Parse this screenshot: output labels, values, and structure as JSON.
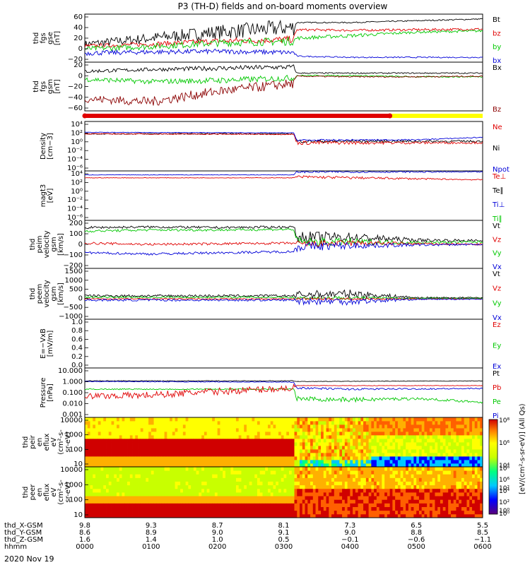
{
  "title": "P3 (TH-D) fields and on-board moments overview",
  "date": "2020 Nov 19",
  "colors": {
    "black": "#000000",
    "red": "#e00000",
    "green": "#00c800",
    "blue": "#0000d8",
    "darkred": "#8b0000",
    "yellow": "#ffff00",
    "frame": "#000000"
  },
  "chart_data": [
    {
      "type": "line",
      "name": "fgs-gse",
      "ylabel": [
        "thd",
        "fgs",
        "gse",
        "[nT]"
      ],
      "yticks": [
        "60",
        "40",
        "20",
        "0",
        "−20"
      ],
      "legend": [
        {
          "label": "Bt",
          "color": "black"
        },
        {
          "label": "bz",
          "color": "red"
        },
        {
          "label": "by",
          "color": "green"
        },
        {
          "label": "bx",
          "color": "blue"
        }
      ],
      "ylim": [
        -20,
        60
      ],
      "series": [
        {
          "name": "Bt",
          "color": "black",
          "x": [
            0,
            1,
            2,
            3.15,
            3.2,
            4,
            5,
            6
          ],
          "y": [
            10,
            20,
            30,
            38,
            46,
            46,
            49,
            52
          ],
          "noise": [
            6,
            9,
            12,
            14,
            1,
            1,
            1,
            1
          ]
        },
        {
          "name": "bz",
          "color": "red",
          "x": [
            0,
            1,
            2,
            3.15,
            3.2,
            4,
            5,
            6
          ],
          "y": [
            7,
            10,
            15,
            18,
            34,
            33,
            34,
            35
          ],
          "noise": [
            3,
            4,
            5,
            6,
            2,
            2,
            2,
            2
          ]
        },
        {
          "name": "by",
          "color": "green",
          "x": [
            0,
            1,
            2,
            3.15,
            3.2,
            4,
            5,
            6
          ],
          "y": [
            2,
            6,
            12,
            15,
            20,
            24,
            30,
            32
          ],
          "noise": [
            4,
            5,
            6,
            7,
            3,
            3,
            2,
            2
          ]
        },
        {
          "name": "bx",
          "color": "blue",
          "x": [
            0,
            1,
            2,
            3.15,
            3.2,
            4,
            5,
            6
          ],
          "y": [
            -5,
            -3,
            -2,
            -4,
            -10,
            -12,
            -12,
            -12
          ],
          "noise": [
            4,
            4,
            4,
            4,
            1,
            1,
            1,
            1
          ]
        }
      ]
    },
    {
      "type": "line",
      "name": "fgs-gsm",
      "ylabel": [
        "thd",
        "fgs",
        "gsm",
        "[nT]"
      ],
      "yticks": [
        "20",
        "0",
        "−20",
        "−40",
        "−60"
      ],
      "legend": [
        {
          "label": "Bx",
          "color": "black"
        },
        {
          "label": "Bz",
          "color": "darkred"
        }
      ],
      "ylim": [
        -60,
        20
      ],
      "series": [
        {
          "name": "Bx",
          "color": "black",
          "x": [
            0,
            1,
            2,
            3.15,
            3.2,
            4,
            5,
            6
          ],
          "y": [
            5,
            8,
            10,
            12,
            2,
            2,
            2,
            2
          ],
          "noise": [
            3,
            3,
            4,
            4,
            1,
            1,
            1,
            1
          ]
        },
        {
          "name": "By",
          "color": "green",
          "x": [
            0,
            1,
            2,
            3.15,
            3.2,
            4,
            5,
            6
          ],
          "y": [
            -8,
            -12,
            -10,
            -6,
            -2,
            -2,
            -4,
            -4
          ],
          "noise": [
            4,
            4,
            5,
            5,
            1,
            1,
            1,
            1
          ]
        },
        {
          "name": "Bz",
          "color": "darkred",
          "x": [
            0,
            1,
            2,
            3.15,
            3.2,
            4,
            5,
            6
          ],
          "y": [
            -40,
            -45,
            -28,
            -15,
            -3,
            -4,
            -4,
            -3
          ],
          "noise": [
            6,
            8,
            8,
            8,
            1,
            1,
            1,
            1
          ]
        }
      ]
    },
    {
      "type": "bar-strip",
      "name": "mode-bar",
      "segments": [
        {
          "from": 0,
          "to": 4.6,
          "color": "red"
        },
        {
          "from": 4.6,
          "to": 6,
          "color": "yellow"
        }
      ]
    },
    {
      "type": "line",
      "name": "density",
      "log": true,
      "ylabel": [
        "Density",
        "[cm−3]"
      ],
      "yticks": [
        "10⁴",
        "10²",
        "10⁰",
        "10⁻²",
        "10⁻⁴",
        "10⁻⁶"
      ],
      "legend": [
        {
          "label": "Ne",
          "color": "red"
        },
        {
          "label": "Ni",
          "color": "black"
        },
        {
          "label": "Npot",
          "color": "blue"
        }
      ],
      "ylim": [
        -6,
        4
      ],
      "series": [
        {
          "name": "Ni",
          "color": "black",
          "x": [
            0,
            3.15,
            3.2,
            6
          ],
          "y": [
            1.5,
            1.5,
            0,
            0
          ],
          "noise": [
            0.1,
            0.1,
            0.3,
            0.2
          ]
        },
        {
          "name": "Ne",
          "color": "red",
          "x": [
            0,
            3.15,
            3.2,
            6
          ],
          "y": [
            1.5,
            1.4,
            -0.3,
            -0.3
          ],
          "noise": [
            0.1,
            0.1,
            0.4,
            0.2
          ]
        },
        {
          "name": "Npot",
          "color": "blue",
          "x": [
            0,
            3.15,
            3.2,
            5,
            6
          ],
          "y": [
            1.8,
            1.7,
            0.2,
            0.3,
            0.8
          ],
          "noise": [
            0.05,
            0.05,
            0.2,
            0.1,
            0.1
          ]
        }
      ]
    },
    {
      "type": "line",
      "name": "temperature",
      "log": true,
      "ylabel": [
        "magt3",
        "[eV]"
      ],
      "yticks": [
        "10⁴",
        "10²",
        "10⁰",
        "10⁻²",
        "10⁻⁴",
        "10⁻⁶"
      ],
      "legend": [
        {
          "label": "Te⊥",
          "color": "red"
        },
        {
          "label": "Te∥",
          "color": "black"
        },
        {
          "label": "Ti⊥",
          "color": "blue"
        },
        {
          "label": "Ti∥",
          "color": "green"
        }
      ],
      "ylim": [
        -6,
        4
      ],
      "series": [
        {
          "name": "Ti",
          "color": "blue",
          "x": [
            0,
            3.15,
            3.2,
            6
          ],
          "y": [
            3.2,
            3.2,
            3.8,
            3.8
          ],
          "noise": [
            0.05,
            0.05,
            0.2,
            0.1
          ]
        },
        {
          "name": "Te",
          "color": "red",
          "x": [
            0,
            3.15,
            3.2,
            6
          ],
          "y": [
            2.6,
            2.6,
            2.8,
            2.2
          ],
          "noise": [
            0.05,
            0.05,
            0.3,
            0.1
          ]
        }
      ]
    },
    {
      "type": "line",
      "name": "peim-velocity",
      "ylabel": [
        "thd",
        "peim",
        "velocity",
        "gsm",
        "[km/s]"
      ],
      "yticks": [
        "200",
        "100",
        "0",
        "−100",
        "−200"
      ],
      "legend": [
        {
          "label": "Vt",
          "color": "black"
        },
        {
          "label": "Vz",
          "color": "red"
        },
        {
          "label": "Vy",
          "color": "green"
        },
        {
          "label": "Vx",
          "color": "blue"
        }
      ],
      "ylim": [
        -200,
        200
      ],
      "series": [
        {
          "name": "Vt",
          "color": "black",
          "x": [
            0,
            1,
            2,
            3.15,
            3.2,
            4,
            5,
            6
          ],
          "y": [
            140,
            145,
            140,
            145,
            60,
            60,
            35,
            30
          ],
          "noise": [
            10,
            10,
            10,
            10,
            50,
            40,
            15,
            10
          ]
        },
        {
          "name": "Vy",
          "color": "green",
          "x": [
            0,
            1,
            2,
            3.15,
            3.2,
            4,
            5,
            6
          ],
          "y": [
            110,
            120,
            120,
            125,
            20,
            20,
            15,
            20
          ],
          "noise": [
            10,
            10,
            10,
            10,
            40,
            30,
            10,
            10
          ]
        },
        {
          "name": "Vz",
          "color": "red",
          "x": [
            0,
            1,
            2,
            3.15,
            3.2,
            4,
            5,
            6
          ],
          "y": [
            10,
            0,
            5,
            10,
            0,
            10,
            5,
            0
          ],
          "noise": [
            10,
            10,
            10,
            10,
            30,
            25,
            10,
            8
          ]
        },
        {
          "name": "Vx",
          "color": "blue",
          "x": [
            0,
            1,
            2,
            3.15,
            3.2,
            4,
            5,
            6
          ],
          "y": [
            -70,
            -80,
            -70,
            -60,
            -20,
            -10,
            -5,
            0
          ],
          "noise": [
            10,
            10,
            10,
            10,
            40,
            30,
            10,
            8
          ]
        }
      ]
    },
    {
      "type": "line",
      "name": "peem-velocity",
      "ylabel": [
        "thd",
        "peem",
        "velocity",
        "gsm",
        "[km/s]"
      ],
      "yticks": [
        "1500",
        "1000",
        "500",
        "0",
        "−500",
        "−1000"
      ],
      "legend": [
        {
          "label": "Vt",
          "color": "black"
        },
        {
          "label": "Vz",
          "color": "red"
        },
        {
          "label": "Vy",
          "color": "green"
        },
        {
          "label": "Vx",
          "color": "blue"
        }
      ],
      "ylim": [
        -1000,
        1500
      ],
      "series": [
        {
          "name": "Vt",
          "color": "black",
          "x": [
            0,
            3.15,
            3.2,
            4,
            5,
            6
          ],
          "y": [
            150,
            150,
            200,
            250,
            60,
            60
          ],
          "noise": [
            60,
            60,
            200,
            200,
            40,
            30
          ]
        },
        {
          "name": "Vy",
          "color": "green",
          "x": [
            0,
            3.15,
            3.2,
            4,
            5,
            6
          ],
          "y": [
            80,
            80,
            50,
            50,
            30,
            30
          ],
          "noise": [
            40,
            40,
            80,
            80,
            20,
            20
          ]
        },
        {
          "name": "Vz",
          "color": "red",
          "x": [
            0,
            3.15,
            3.2,
            4,
            5,
            6
          ],
          "y": [
            0,
            0,
            0,
            0,
            0,
            0
          ],
          "noise": [
            30,
            30,
            60,
            60,
            20,
            20
          ]
        },
        {
          "name": "Vx",
          "color": "blue",
          "x": [
            0,
            3.15,
            3.2,
            4,
            5,
            6
          ],
          "y": [
            -60,
            -60,
            -100,
            -120,
            -20,
            -10
          ],
          "noise": [
            50,
            50,
            180,
            180,
            30,
            20
          ]
        }
      ]
    },
    {
      "type": "line",
      "name": "efield",
      "ylabel": [
        "E=−VxB",
        "[mV/m]"
      ],
      "yticks": [
        "1.0",
        "0.8",
        "0.6",
        "0.4",
        "0.2",
        "0.0"
      ],
      "legend": [
        {
          "label": "Ez",
          "color": "red"
        },
        {
          "label": "Ey",
          "color": "green"
        },
        {
          "label": "Ex",
          "color": "blue"
        }
      ],
      "ylim": [
        0,
        1
      ],
      "series": []
    },
    {
      "type": "line",
      "name": "pressure",
      "log": true,
      "ylabel": [
        "Pressure",
        "[nPa]"
      ],
      "yticks": [
        "10.000",
        "1.000",
        "0.100",
        "0.010",
        "0.001"
      ],
      "legend": [
        {
          "label": "Pt",
          "color": "black"
        },
        {
          "label": "Pb",
          "color": "red"
        },
        {
          "label": "Pe",
          "color": "green"
        },
        {
          "label": "Pi",
          "color": "blue"
        }
      ],
      "ylim": [
        -3.1,
        1.1
      ],
      "series": [
        {
          "name": "Pt",
          "color": "black",
          "x": [
            0,
            3.15,
            3.2,
            6
          ],
          "y": [
            0.0,
            0.0,
            -0.05,
            0.0
          ],
          "noise": [
            0.03,
            0.03,
            0.02,
            0.02
          ]
        },
        {
          "name": "Pi",
          "color": "blue",
          "x": [
            0,
            3.15,
            3.2,
            4,
            6
          ],
          "y": [
            -0.05,
            -0.1,
            -0.6,
            -0.7,
            -0.65
          ],
          "noise": [
            0.03,
            0.03,
            0.08,
            0.08,
            0.05
          ]
        },
        {
          "name": "Pe",
          "color": "green",
          "x": [
            0,
            3.15,
            3.2,
            4,
            5,
            6
          ],
          "y": [
            -0.7,
            -0.7,
            -1.5,
            -1.6,
            -1.5,
            -1.8
          ],
          "noise": [
            0.05,
            0.05,
            0.2,
            0.2,
            0.1,
            0.1
          ]
        },
        {
          "name": "Pb",
          "color": "red",
          "x": [
            0,
            1,
            2,
            3.15,
            3.2,
            6
          ],
          "y": [
            -1.3,
            -1.2,
            -0.9,
            -0.6,
            -0.4,
            -0.4
          ],
          "noise": [
            0.25,
            0.3,
            0.3,
            0.3,
            0.02,
            0.02
          ]
        }
      ]
    },
    {
      "type": "heatmap",
      "name": "peir-spectrogram",
      "ylabel": [
        "thd",
        "peir",
        "en",
        "eflux",
        "eV",
        "(cm²-s-",
        "sr-eV)"
      ],
      "yticks": [
        "10000",
        "1000",
        "100",
        "10"
      ]
    },
    {
      "type": "heatmap",
      "name": "peer-spectrogram",
      "ylabel": [
        "thd",
        "peer",
        "en",
        "eflux",
        "eV",
        "(cm²-s-",
        "sr-eV)"
      ],
      "yticks": [
        "10000",
        "1000",
        "100",
        "10"
      ]
    }
  ],
  "colorbar": {
    "ticks": [
      "10⁸",
      "10⁶",
      "10⁴",
      "10²",
      "10⁰"
    ],
    "label": "[eV/(cm²-s-sr-eV)] (All Qs)"
  },
  "xaxis": {
    "rows": [
      {
        "label": "thd_X-GSM",
        "values": [
          "9.8",
          "9.3",
          "8.7",
          "8.1",
          "7.3",
          "6.5",
          "5.5"
        ]
      },
      {
        "label": "thd_Y-GSM",
        "values": [
          "8.6",
          "8.9",
          "9.0",
          "9.1",
          "9.0",
          "8.8",
          "8.5"
        ]
      },
      {
        "label": "thd_Z-GSM",
        "values": [
          "1.6",
          "1.4",
          "1.0",
          "0.5",
          "−0.1",
          "−0.6",
          "−1.1"
        ]
      },
      {
        "label": "hhmm",
        "values": [
          "0000",
          "0100",
          "0200",
          "0300",
          "0400",
          "0500",
          "0600"
        ]
      }
    ]
  }
}
